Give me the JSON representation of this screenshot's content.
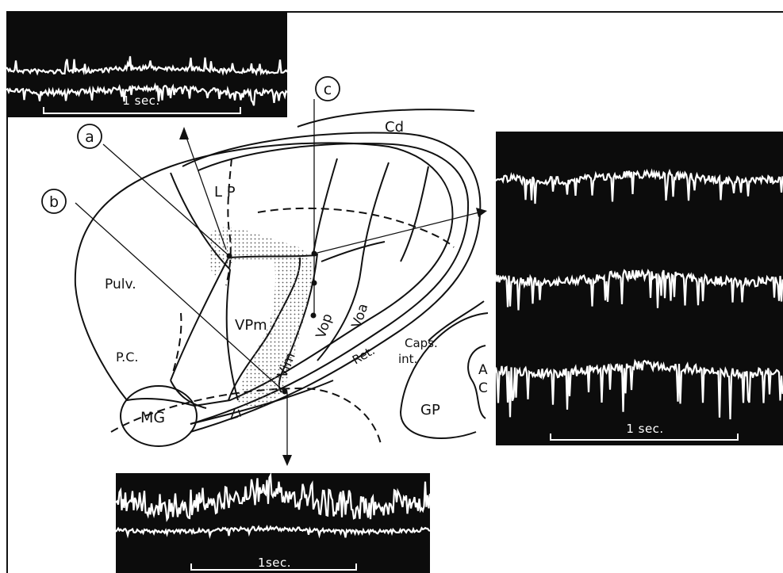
{
  "structure_labels": {
    "lp": "L P",
    "cd": "Cd",
    "pulv": "Pulv.",
    "vpm": "VPm",
    "vim": "Vim",
    "vop": "Vop",
    "voa": "Voa",
    "ret": "Ret.",
    "pc": "P.C.",
    "mg": "MG",
    "zi": "Zi",
    "caps": "Caps.",
    "int": "int.",
    "gp": "GP",
    "a": "A",
    "c": "C"
  },
  "track_labels": {
    "a": "a",
    "b": "b",
    "c": "c"
  },
  "recordings": {
    "top_left_scale": "1 sec.",
    "right_scale": "1 sec.",
    "bottom_scale": "1sec."
  }
}
